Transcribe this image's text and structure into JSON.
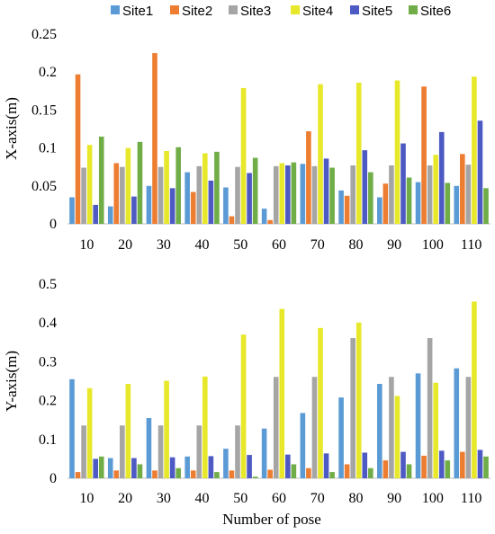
{
  "chart_data": [
    {
      "type": "bar",
      "ylabel": "X-axis(m)",
      "xlabel": "",
      "ylim": [
        0,
        0.25
      ],
      "yticks": [
        0,
        0.05,
        0.1,
        0.15,
        0.2,
        0.25
      ],
      "ytick_labels": [
        "0",
        "0.05",
        "0.1",
        "0.15",
        "0.2",
        "0.25"
      ],
      "legend_position": "top",
      "categories": [
        "10",
        "20",
        "30",
        "40",
        "50",
        "60",
        "70",
        "80",
        "90",
        "100",
        "110"
      ],
      "series": [
        {
          "name": "Site1",
          "color": "#5B9BD5",
          "values": [
            0.035,
            0.023,
            0.05,
            0.068,
            0.048,
            0.02,
            0.079,
            0.044,
            0.035,
            0.055,
            0.05
          ]
        },
        {
          "name": "Site2",
          "color": "#ED7D31",
          "values": [
            0.197,
            0.08,
            0.225,
            0.042,
            0.01,
            0.005,
            0.122,
            0.037,
            0.053,
            0.181,
            0.092
          ]
        },
        {
          "name": "Site3",
          "color": "#A5A5A5",
          "values": [
            0.074,
            0.075,
            0.075,
            0.076,
            0.075,
            0.076,
            0.076,
            0.077,
            0.077,
            0.077,
            0.078
          ]
        },
        {
          "name": "Site4",
          "color": "#E8E82A",
          "values": [
            0.104,
            0.1,
            0.096,
            0.093,
            0.179,
            0.08,
            0.184,
            0.186,
            0.189,
            0.091,
            0.194
          ]
        },
        {
          "name": "Site5",
          "color": "#4E5AC4",
          "values": [
            0.025,
            0.036,
            0.047,
            0.057,
            0.067,
            0.077,
            0.086,
            0.097,
            0.106,
            0.121,
            0.136
          ]
        },
        {
          "name": "Site6",
          "color": "#70AD47",
          "values": [
            0.115,
            0.108,
            0.101,
            0.095,
            0.087,
            0.081,
            0.074,
            0.068,
            0.061,
            0.054,
            0.047
          ]
        }
      ]
    },
    {
      "type": "bar",
      "ylabel": "Y-axis(m)",
      "xlabel": "Number of pose",
      "ylim": [
        0,
        0.5
      ],
      "yticks": [
        0,
        0.1,
        0.2,
        0.3,
        0.4,
        0.5
      ],
      "ytick_labels": [
        "0",
        "0.1",
        "0.2",
        "0.3",
        "0.4",
        "0.5"
      ],
      "categories": [
        "10",
        "20",
        "30",
        "40",
        "50",
        "60",
        "70",
        "80",
        "90",
        "100",
        "110"
      ],
      "series": [
        {
          "name": "Site1",
          "color": "#5B9BD5",
          "values": [
            0.255,
            0.052,
            0.155,
            0.056,
            0.076,
            0.128,
            0.168,
            0.208,
            0.243,
            0.27,
            0.283
          ]
        },
        {
          "name": "Site2",
          "color": "#ED7D31",
          "values": [
            0.016,
            0.02,
            0.02,
            0.02,
            0.02,
            0.022,
            0.026,
            0.036,
            0.046,
            0.058,
            0.068
          ]
        },
        {
          "name": "Site3",
          "color": "#A5A5A5",
          "values": [
            0.136,
            0.136,
            0.136,
            0.136,
            0.136,
            0.261,
            0.261,
            0.361,
            0.261,
            0.361,
            0.261
          ]
        },
        {
          "name": "Site4",
          "color": "#E8E82A",
          "values": [
            0.232,
            0.243,
            0.251,
            0.262,
            0.37,
            0.436,
            0.387,
            0.401,
            0.212,
            0.246,
            0.455
          ]
        },
        {
          "name": "Site5",
          "color": "#4E5AC4",
          "values": [
            0.05,
            0.052,
            0.054,
            0.057,
            0.06,
            0.061,
            0.064,
            0.066,
            0.068,
            0.071,
            0.073
          ]
        },
        {
          "name": "Site6",
          "color": "#70AD47",
          "values": [
            0.056,
            0.036,
            0.026,
            0.016,
            0.004,
            0.036,
            0.016,
            0.026,
            0.036,
            0.046,
            0.056
          ]
        }
      ]
    }
  ]
}
